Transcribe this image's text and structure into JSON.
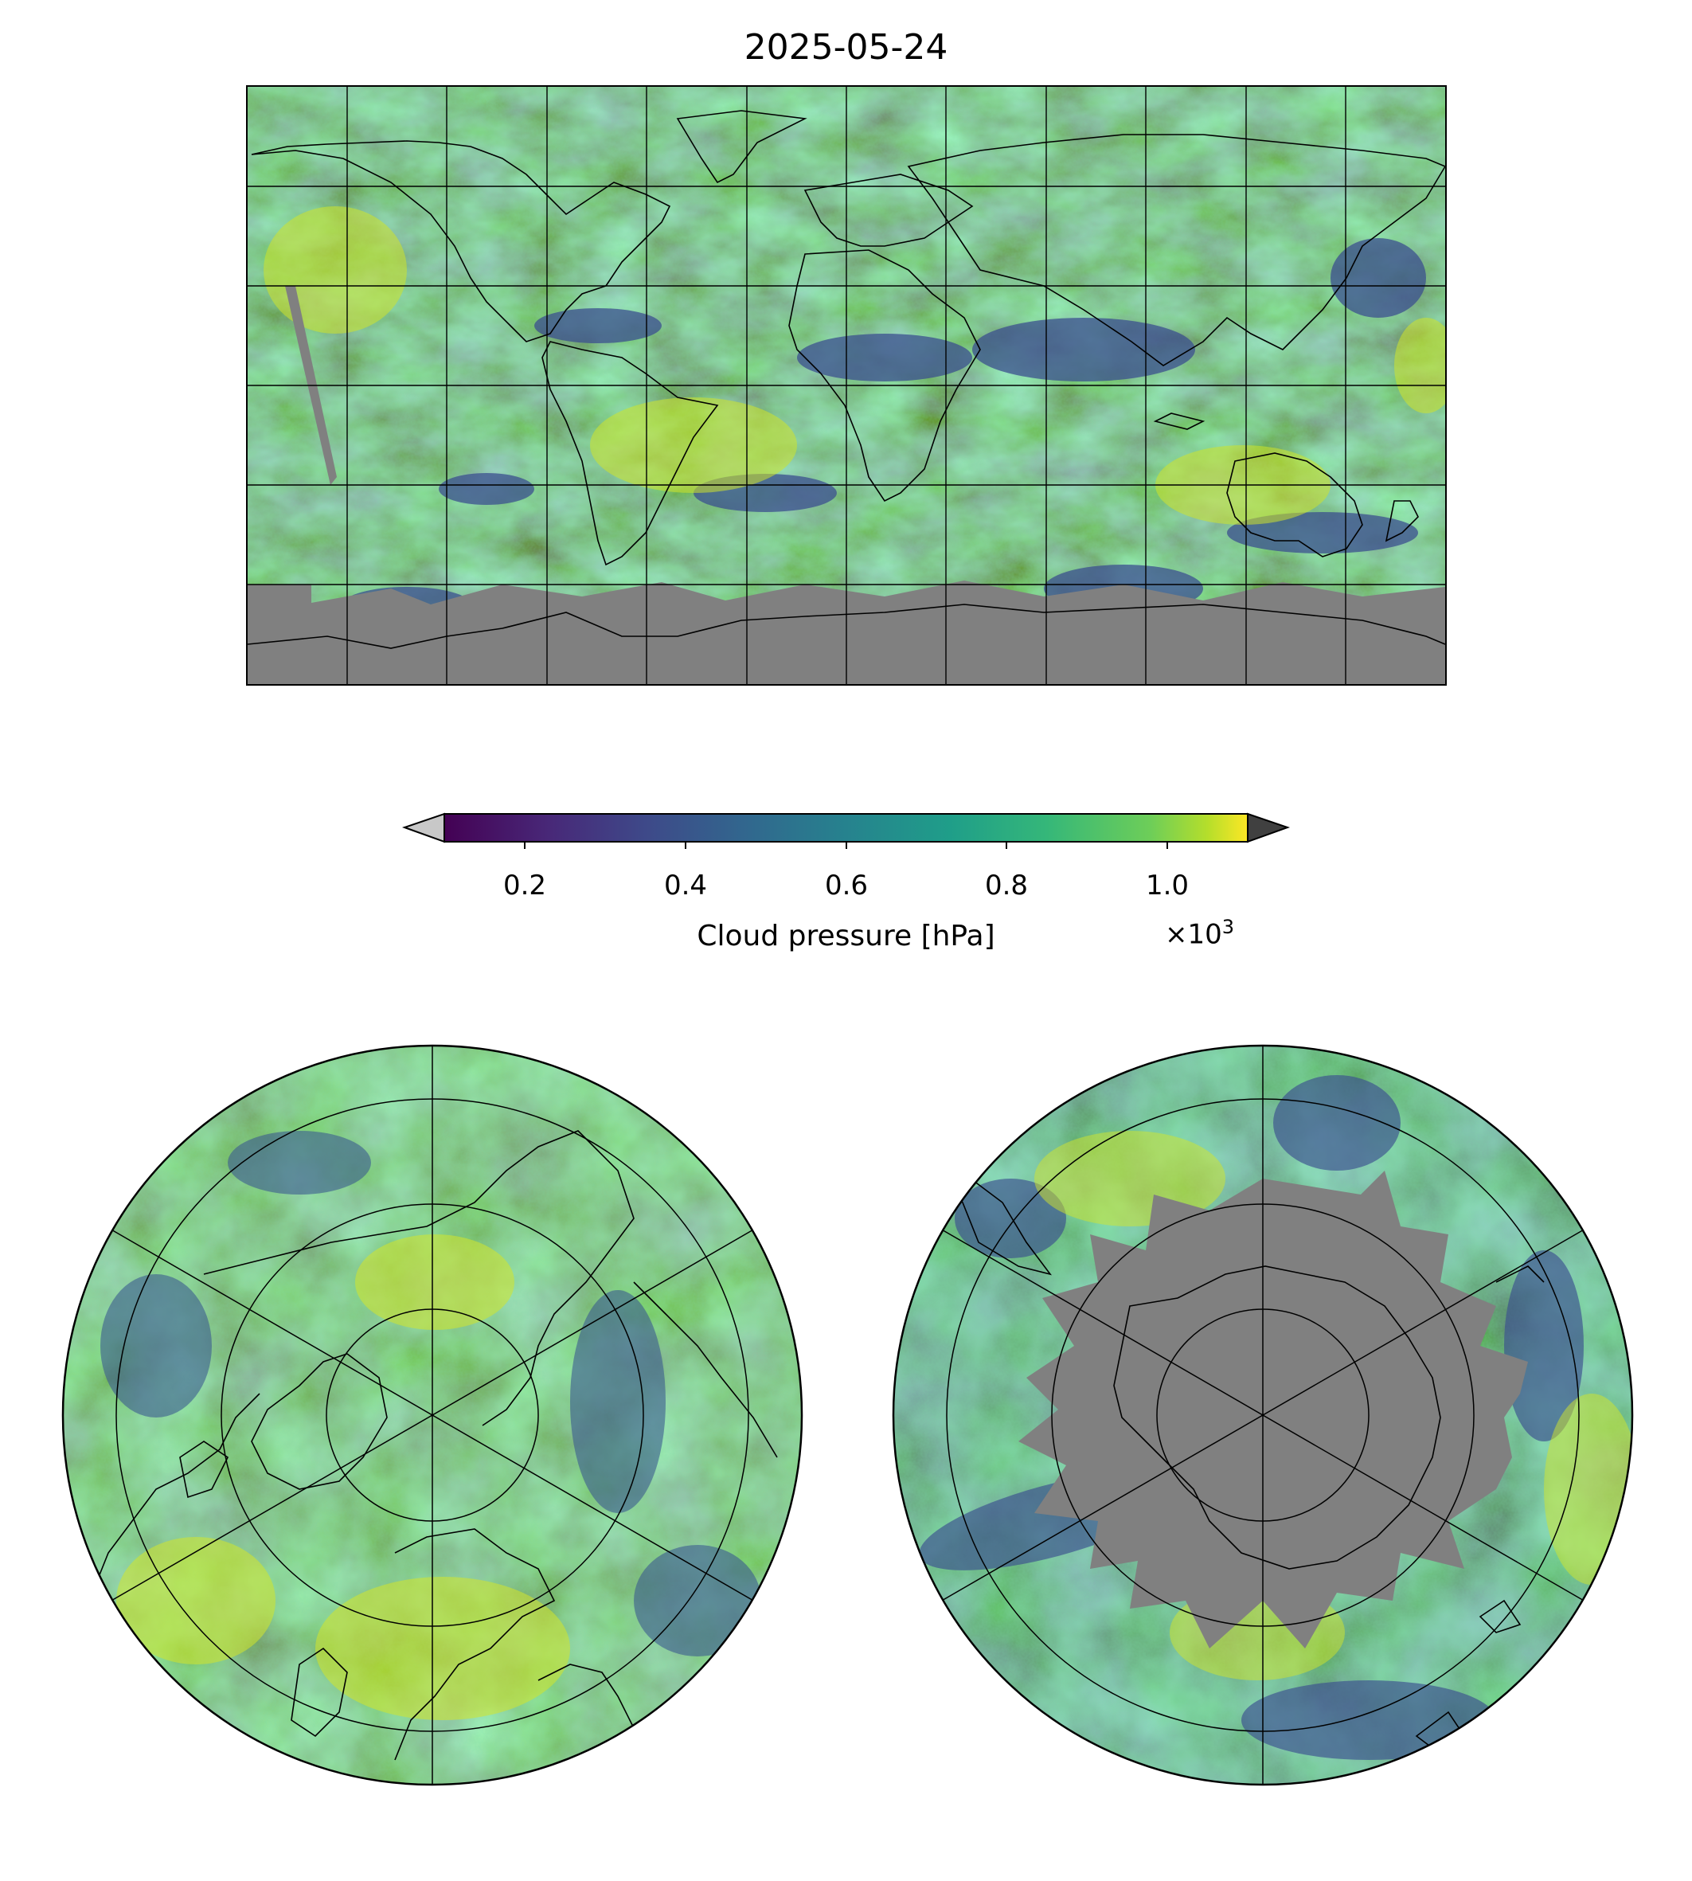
{
  "title": "2025-05-24",
  "colorbar": {
    "label": "Cloud pressure [hPa]",
    "ticks": [
      "0.2",
      "0.4",
      "0.6",
      "0.8",
      "1.0"
    ],
    "tick_values": [
      0.2,
      0.4,
      0.6,
      0.8,
      1.0
    ],
    "range": [
      0.1,
      1.1
    ],
    "exponent_prefix": "×10",
    "exponent_power": "3",
    "extend": "both",
    "under_color": "#c8c8c8",
    "over_color": "#404040",
    "colormap": "viridis"
  },
  "colors": {
    "missing": "#808080",
    "coastline": "#000000",
    "gridline": "#000000"
  },
  "maps": {
    "global": {
      "projection": "plate-carree",
      "grid": "60 deg lon / 30 deg lat"
    },
    "north_polar": {
      "projection": "north-polar-stereographic",
      "grid": "on"
    },
    "south_polar": {
      "projection": "south-polar-stereographic",
      "grid": "on",
      "missing_fill": "Antarctica"
    }
  }
}
